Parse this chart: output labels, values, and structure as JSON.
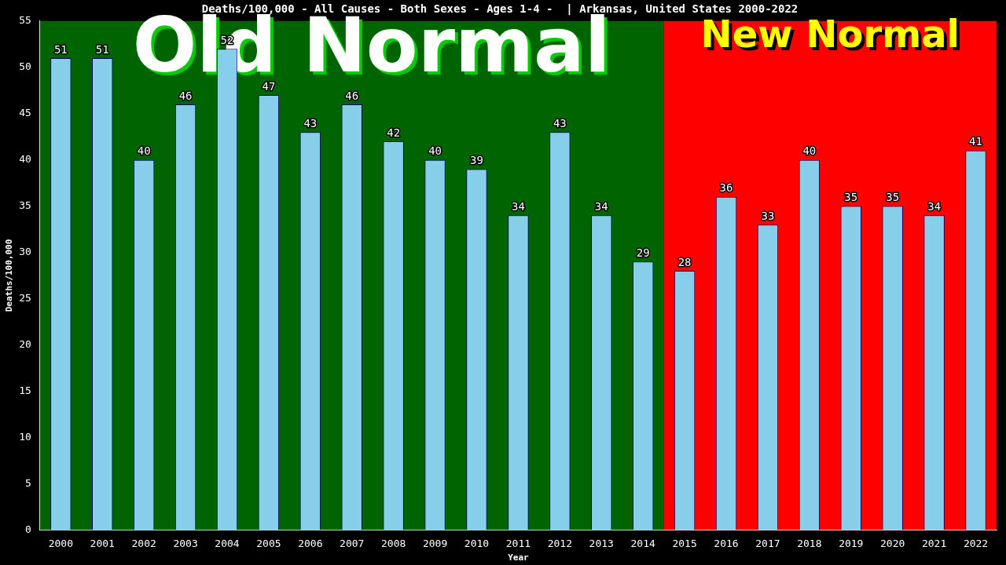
{
  "chart_data": {
    "type": "bar",
    "title": "Deaths/100,000 - All Causes - Both Sexes - Ages 1-4 -  | Arkansas, United States 2000-2022",
    "xlabel": "Year",
    "ylabel": "Deaths/100,000",
    "categories": [
      "2000",
      "2001",
      "2002",
      "2003",
      "2004",
      "2005",
      "2006",
      "2007",
      "2008",
      "2009",
      "2010",
      "2011",
      "2012",
      "2013",
      "2014",
      "2015",
      "2016",
      "2017",
      "2018",
      "2019",
      "2020",
      "2021",
      "2022"
    ],
    "values": [
      51,
      51,
      40,
      46,
      52,
      47,
      43,
      46,
      42,
      40,
      39,
      34,
      43,
      34,
      29,
      28,
      36,
      33,
      40,
      35,
      35,
      34,
      41
    ],
    "color": "#87ceeb",
    "ylim": [
      0,
      55
    ],
    "yticks": [
      0,
      5,
      10,
      15,
      20,
      25,
      30,
      35,
      40,
      45,
      50,
      55
    ],
    "bands": [
      {
        "axis": "x",
        "from": "2000",
        "to": "2014",
        "label": "Old Normal",
        "color": "#006400"
      },
      {
        "axis": "x",
        "from": "2015",
        "to": "2022",
        "label": "New Normal",
        "color": "#ff0000"
      }
    ],
    "data_labels": true,
    "grid": false,
    "legend": false
  }
}
